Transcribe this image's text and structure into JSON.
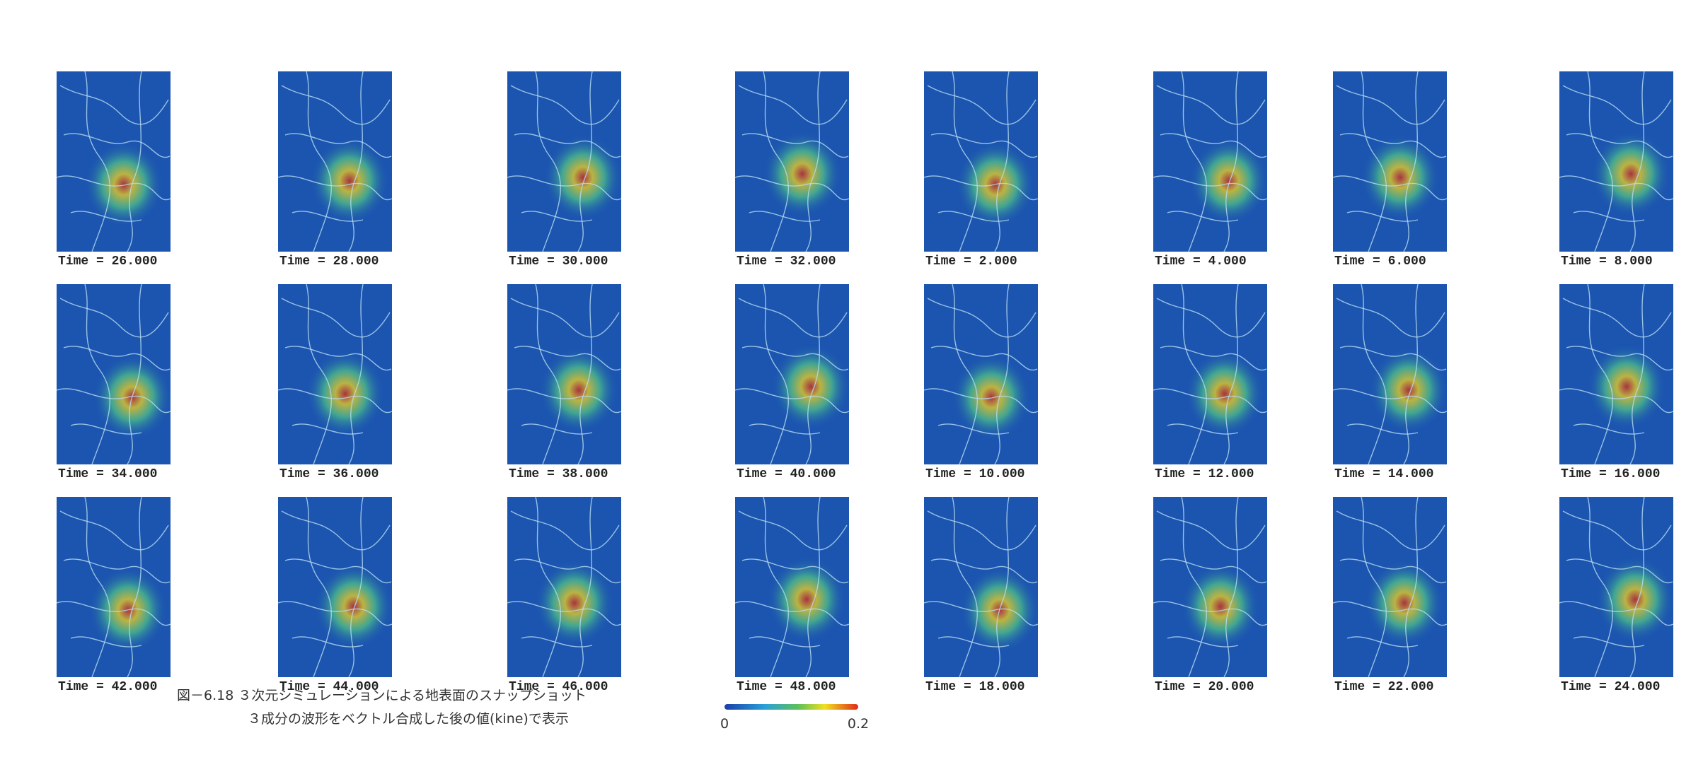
{
  "panels": [
    {
      "label": "Time =  26.000"
    },
    {
      "label": "Time =  28.000"
    },
    {
      "label": "Time =  30.000"
    },
    {
      "label": "Time =  32.000"
    },
    {
      "label": "Time =  2.000"
    },
    {
      "label": "Time =  4.000"
    },
    {
      "label": "Time =  6.000"
    },
    {
      "label": "Time =  8.000"
    },
    {
      "label": "Time =  34.000"
    },
    {
      "label": "Time =  36.000"
    },
    {
      "label": "Time =  38.000"
    },
    {
      "label": "Time =  40.000"
    },
    {
      "label": "Time =  10.000"
    },
    {
      "label": "Time =  12.000"
    },
    {
      "label": "Time =  14.000"
    },
    {
      "label": "Time =  16.000"
    },
    {
      "label": "Time =  42.000"
    },
    {
      "label": "Time =  44.000"
    },
    {
      "label": "Time =  46.000"
    },
    {
      "label": "Time =  48.000"
    },
    {
      "label": "Time =  18.000"
    },
    {
      "label": "Time =  20.000"
    },
    {
      "label": "Time =  22.000"
    },
    {
      "label": "Time =  24.000"
    }
  ],
  "caption": {
    "line1": "図－6.18 ３次元シミュレーションによる地表面のスナップショット",
    "line2": "３成分の波形をベクトル合成した後の値(kine)で表示"
  },
  "colorbar": {
    "min_label": "0",
    "max_label": "0.2"
  }
}
